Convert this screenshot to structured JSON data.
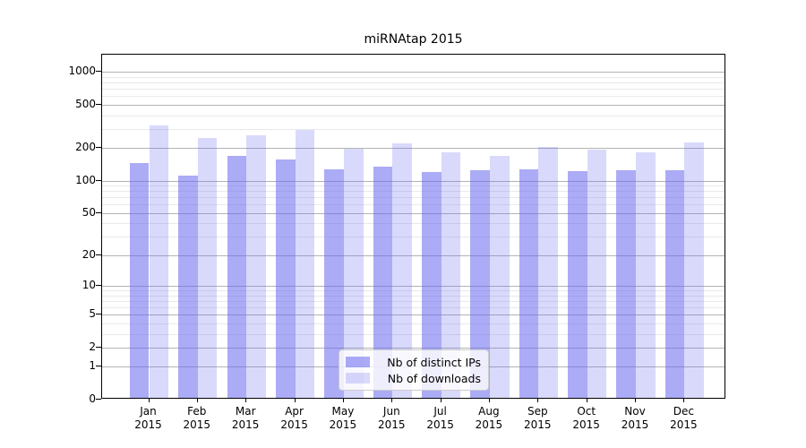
{
  "title": "miRNAtap 2015",
  "colors": {
    "bar_base": "#6666ee",
    "ips_alpha": 0.55,
    "downloads_alpha": 0.25,
    "grid_major": "#b3b3b3",
    "grid_minor": "#e9e9e9",
    "axis": "#000000"
  },
  "legend": {
    "items": [
      {
        "label": "Nb of distinct IPs",
        "series": "ips"
      },
      {
        "label": "Nb of downloads",
        "series": "downloads"
      }
    ]
  },
  "chart_data": {
    "type": "bar",
    "title": "miRNAtap 2015",
    "categories": [
      "Jan 2015",
      "Feb 2015",
      "Mar 2015",
      "Apr 2015",
      "May 2015",
      "Jun 2015",
      "Jul 2015",
      "Aug 2015",
      "Sep 2015",
      "Oct 2015",
      "Nov 2015",
      "Dec 2015"
    ],
    "months": [
      "Jan",
      "Feb",
      "Mar",
      "Apr",
      "May",
      "Jun",
      "Jul",
      "Aug",
      "Sep",
      "Oct",
      "Nov",
      "Dec"
    ],
    "year_label": "2015",
    "series": [
      {
        "name": "Nb of distinct IPs",
        "values": [
          145,
          112,
          168,
          156,
          127,
          135,
          119,
          124,
          126,
          123,
          124,
          124
        ]
      },
      {
        "name": "Nb of downloads",
        "values": [
          323,
          249,
          263,
          294,
          197,
          221,
          183,
          168,
          206,
          193,
          182,
          225
        ]
      }
    ],
    "xlabel": "",
    "ylabel": "",
    "yscale": "log1p",
    "yticks": [
      0,
      1,
      2,
      5,
      10,
      20,
      50,
      100,
      200,
      500,
      1000
    ],
    "ylim": [
      0,
      1430
    ],
    "grid": "both",
    "legend_position": "lower center"
  }
}
